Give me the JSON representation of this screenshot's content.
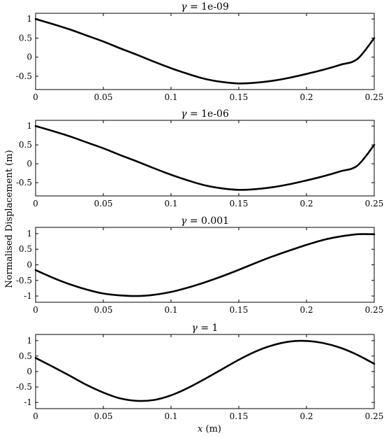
{
  "chart_data": [
    {
      "type": "line",
      "title_symbol": "γ",
      "title_value": "= 1e-09",
      "xlim": [
        0,
        0.25
      ],
      "ylim": [
        -0.85,
        1.15
      ],
      "xticks": [
        "0",
        "0.05",
        "0.1",
        "0.15",
        "0.2",
        "0.25"
      ],
      "yticks": [
        1,
        0.5,
        0,
        -0.5
      ],
      "ytick_labels": [
        "1",
        "0.5",
        "0",
        "-0.5"
      ],
      "series": [
        {
          "x": [
            0,
            0.0125,
            0.025,
            0.0375,
            0.05,
            0.0625,
            0.075,
            0.0875,
            0.1,
            0.1125,
            0.125,
            0.1375,
            0.15,
            0.1625,
            0.175,
            0.1875,
            0.2,
            0.2125,
            0.225,
            0.2375,
            0.25
          ],
          "y": [
            1,
            0.87,
            0.73,
            0.57,
            0.41,
            0.23,
            0.06,
            -0.12,
            -0.29,
            -0.44,
            -0.57,
            -0.65,
            -0.69,
            -0.67,
            -0.62,
            -0.54,
            -0.44,
            -0.33,
            -0.2,
            -0.05,
            0.5
          ]
        }
      ]
    },
    {
      "type": "line",
      "title_symbol": "γ",
      "title_value": "= 1e-06",
      "xlim": [
        0,
        0.25
      ],
      "ylim": [
        -0.85,
        1.15
      ],
      "xticks": [
        "0",
        "0.05",
        "0.1",
        "0.15",
        "0.2",
        "0.25"
      ],
      "yticks": [
        1,
        0.5,
        0,
        -0.5
      ],
      "ytick_labels": [
        "1",
        "0.5",
        "0",
        "-0.5"
      ],
      "series": [
        {
          "x": [
            0,
            0.0125,
            0.025,
            0.0375,
            0.05,
            0.0625,
            0.075,
            0.0875,
            0.1,
            0.1125,
            0.125,
            0.1375,
            0.15,
            0.1625,
            0.175,
            0.1875,
            0.2,
            0.2125,
            0.225,
            0.2375,
            0.25
          ],
          "y": [
            1,
            0.87,
            0.73,
            0.57,
            0.41,
            0.23,
            0.06,
            -0.12,
            -0.29,
            -0.44,
            -0.57,
            -0.65,
            -0.69,
            -0.67,
            -0.62,
            -0.54,
            -0.44,
            -0.33,
            -0.2,
            -0.05,
            0.5
          ]
        }
      ]
    },
    {
      "type": "line",
      "title_symbol": "γ",
      "title_value": "= 0.001",
      "xlim": [
        0,
        0.25
      ],
      "ylim": [
        -1.2,
        1.2
      ],
      "xticks": [
        "0",
        "0.05",
        "0.1",
        "0.15",
        "0.2",
        "0.25"
      ],
      "yticks": [
        1,
        0.5,
        0,
        -0.5,
        -1
      ],
      "ytick_labels": [
        "1",
        "0.5",
        "0",
        "-0.5",
        "-1"
      ],
      "series": [
        {
          "x": [
            0,
            0.0125,
            0.025,
            0.0375,
            0.05,
            0.0625,
            0.075,
            0.0875,
            0.1,
            0.1125,
            0.125,
            0.1375,
            0.15,
            0.1625,
            0.175,
            0.1875,
            0.2,
            0.2125,
            0.225,
            0.2375,
            0.25
          ],
          "y": [
            -0.17,
            -0.41,
            -0.62,
            -0.79,
            -0.92,
            -0.98,
            -1.0,
            -0.96,
            -0.87,
            -0.73,
            -0.56,
            -0.37,
            -0.16,
            0.06,
            0.27,
            0.46,
            0.64,
            0.8,
            0.91,
            0.98,
            0.98
          ]
        }
      ]
    },
    {
      "type": "line",
      "title_symbol": "γ",
      "title_value": "= 1",
      "xlim": [
        0,
        0.25
      ],
      "ylim": [
        -1.2,
        1.2
      ],
      "xticks": [
        "0",
        "0.05",
        "0.1",
        "0.15",
        "0.2",
        "0.25"
      ],
      "yticks": [
        1,
        0.5,
        0,
        -0.5,
        -1
      ],
      "ytick_labels": [
        "1",
        "0.5",
        "0",
        "-0.5",
        "-1"
      ],
      "series": [
        {
          "x": [
            0,
            0.0125,
            0.025,
            0.0375,
            0.05,
            0.0625,
            0.075,
            0.0875,
            0.1,
            0.1125,
            0.125,
            0.1375,
            0.15,
            0.1625,
            0.175,
            0.1875,
            0.2,
            0.2125,
            0.225,
            0.2375,
            0.25
          ],
          "y": [
            0.44,
            0.16,
            -0.13,
            -0.43,
            -0.68,
            -0.87,
            -0.95,
            -0.92,
            -0.77,
            -0.53,
            -0.24,
            0.07,
            0.38,
            0.65,
            0.85,
            0.97,
            0.99,
            0.92,
            0.77,
            0.54,
            0.25
          ]
        }
      ]
    }
  ],
  "shared": {
    "ylabel": "Normalised Displacement (m)",
    "xlabel_var": "x",
    "xlabel_unit": " (m)"
  }
}
